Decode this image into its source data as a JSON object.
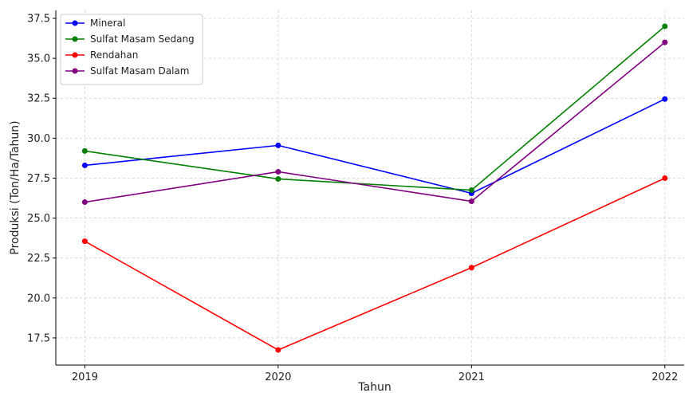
{
  "chart_data": {
    "type": "line",
    "title": "",
    "xlabel": "Tahun",
    "ylabel": "Produksi (Ton/Ha/Tahun)",
    "x": [
      2019,
      2020,
      2021,
      2022
    ],
    "ylim": [
      15.8,
      38.0
    ],
    "yticks": [
      17.5,
      20.0,
      22.5,
      25.0,
      27.5,
      30.0,
      32.5,
      35.0,
      37.5
    ],
    "ytick_labels": [
      "17.5",
      "20.0",
      "22.5",
      "25.0",
      "27.5",
      "30.0",
      "32.5",
      "35.0",
      "37.5"
    ],
    "xtick_labels": [
      "2019",
      "2020",
      "2021",
      "2022"
    ],
    "grid": true,
    "legend_position": "top-left",
    "series": [
      {
        "name": "Mineral",
        "color": "#0000ff",
        "values": [
          28.3,
          29.55,
          26.55,
          32.45
        ]
      },
      {
        "name": "Sulfat Masam Sedang",
        "color": "#008000",
        "values": [
          29.2,
          27.45,
          26.75,
          37.0
        ]
      },
      {
        "name": "Rendahan",
        "color": "#ff0000",
        "values": [
          23.55,
          16.75,
          21.9,
          27.5
        ]
      },
      {
        "name": "Sulfat Masam Dalam",
        "color": "#800080",
        "values": [
          26.0,
          27.9,
          26.05,
          36.0
        ]
      }
    ]
  }
}
